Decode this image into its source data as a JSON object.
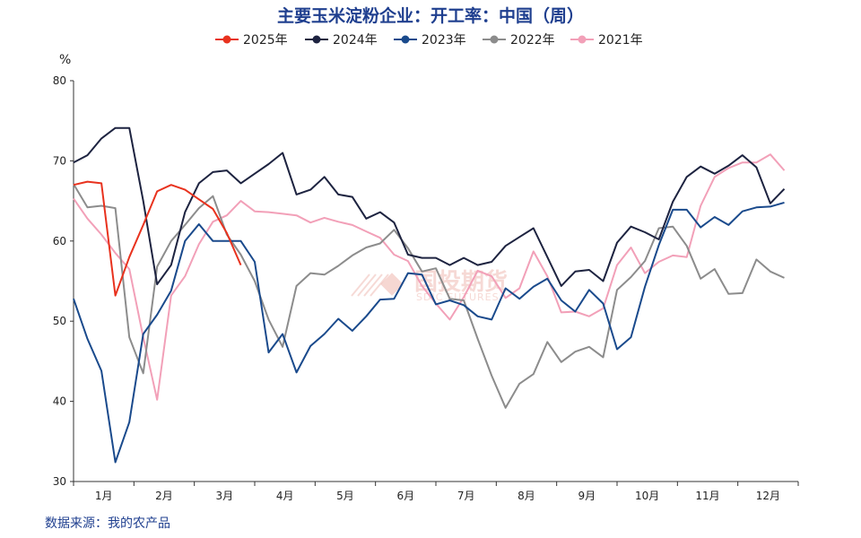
{
  "chart_data": {
    "type": "line",
    "title": "主要玉米淀粉企业：开工率：中国（周）",
    "ylabel": "%",
    "ylim": [
      30,
      80
    ],
    "yticks": [
      30,
      40,
      50,
      60,
      70,
      80
    ],
    "xlim": [
      1,
      53
    ],
    "x_ticks": [
      "1月",
      "2月",
      "3月",
      "4月",
      "5月",
      "6月",
      "7月",
      "8月",
      "9月",
      "10月",
      "11月",
      "12月"
    ],
    "legend_position": "top",
    "series": [
      {
        "name": "2025年",
        "color": "#e8321e",
        "values": [
          67.0,
          67.4,
          67.2,
          53.2,
          58.0,
          62.0,
          66.2,
          67.0,
          66.4,
          65.2,
          64.0,
          61.0,
          57.0
        ]
      },
      {
        "name": "2024年",
        "color": "#1d2340",
        "values": [
          69.8,
          70.7,
          72.8,
          74.1,
          74.1,
          65.0,
          54.6,
          57.0,
          63.6,
          67.2,
          68.6,
          68.8,
          67.2,
          68.4,
          69.6,
          71.0,
          65.8,
          66.4,
          68.0,
          65.8,
          65.5,
          62.8,
          63.6,
          62.3,
          58.3,
          57.9,
          57.9,
          57.0,
          57.9,
          57.0,
          57.4,
          59.4,
          60.5,
          61.6,
          58.0,
          54.4,
          56.2,
          56.4,
          55.0,
          59.8,
          61.8,
          61.1,
          60.2,
          64.9,
          68.0,
          69.3,
          68.4,
          69.4,
          70.7,
          69.2,
          64.7,
          66.5
        ]
      },
      {
        "name": "2023年",
        "color": "#1a4a8c",
        "values": [
          52.8,
          47.8,
          43.8,
          32.4,
          37.4,
          48.4,
          50.8,
          53.8,
          60.0,
          62.1,
          60.0,
          60.0,
          60.0,
          57.4,
          46.1,
          48.4,
          43.6,
          46.9,
          48.4,
          50.3,
          48.8,
          50.6,
          52.7,
          52.8,
          56.0,
          55.8,
          52.1,
          52.6,
          52.0,
          50.6,
          50.2,
          54.1,
          52.8,
          54.3,
          55.3,
          52.6,
          51.2,
          53.9,
          52.2,
          46.5,
          48.0,
          54.3,
          59.5,
          63.9,
          63.9,
          61.7,
          63.0,
          62.0,
          63.7,
          64.2,
          64.3,
          64.8
        ]
      },
      {
        "name": "2022年",
        "color": "#8c8c8c",
        "values": [
          67.1,
          64.2,
          64.4,
          64.1,
          48.0,
          43.5,
          56.8,
          60.0,
          62.0,
          64.1,
          65.6,
          60.8,
          58.3,
          55.0,
          50.2,
          46.8,
          54.4,
          56.0,
          55.8,
          56.9,
          58.2,
          59.2,
          59.7,
          61.4,
          59.1,
          56.2,
          56.6,
          52.8,
          52.6,
          47.8,
          43.2,
          39.2,
          42.2,
          43.4,
          47.4,
          44.9,
          46.2,
          46.8,
          45.5,
          53.9,
          55.5,
          57.5,
          61.6,
          61.8,
          59.4,
          55.3,
          56.5,
          53.4,
          53.5,
          57.7,
          56.2,
          55.4
        ]
      },
      {
        "name": "2021年",
        "color": "#f2a0b8",
        "values": [
          65.3,
          62.8,
          60.8,
          58.5,
          56.5,
          48.0,
          40.2,
          53.2,
          55.6,
          59.6,
          62.4,
          63.2,
          65.0,
          63.7,
          63.6,
          63.4,
          63.2,
          62.3,
          62.9,
          62.4,
          62.0,
          61.2,
          60.4,
          58.3,
          57.5,
          54.4,
          52.2,
          50.2,
          53.0,
          56.3,
          55.6,
          52.9,
          54.1,
          58.7,
          55.6,
          51.1,
          51.2,
          50.6,
          51.6,
          57.0,
          59.2,
          56.0,
          57.4,
          58.2,
          58.0,
          64.4,
          68.0,
          69.1,
          69.8,
          69.8,
          70.8,
          68.8
        ]
      }
    ]
  },
  "source_text": "数据来源：我的农产品",
  "watermark": {
    "cn": "国投期货",
    "en": "SDIC FUTURES"
  }
}
